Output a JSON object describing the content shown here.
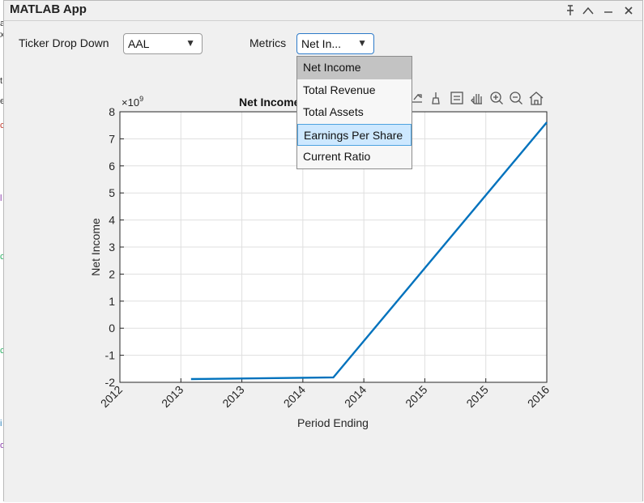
{
  "window": {
    "title": "MATLAB App"
  },
  "titlebar_icons": [
    "pin-icon",
    "undock-icon",
    "minimize-icon",
    "close-icon"
  ],
  "controls": {
    "ticker_label": "Ticker Drop Down",
    "ticker_value": "AAL",
    "metrics_label": "Metrics",
    "metrics_value": "Net In..."
  },
  "metrics_menu": {
    "items": [
      "Net Income",
      "Total Revenue",
      "Total Assets",
      "Earnings Per Share",
      "Current Ratio"
    ],
    "selected": "Net Income",
    "hovered": "Earnings Per Share"
  },
  "axes_toolbar_icons": [
    "export-icon",
    "brush-icon",
    "data-tips-icon",
    "pan-icon",
    "zoom-in-icon",
    "zoom-out-icon",
    "home-icon"
  ],
  "chart_data": {
    "type": "line",
    "title": "Net Income",
    "xlabel": "Period Ending",
    "ylabel": "Net Income",
    "exponent_label": "×10",
    "exponent_power": "9",
    "x_tick_labels": [
      "2012",
      "2013",
      "2013",
      "2014",
      "2014",
      "2015",
      "2015",
      "2016"
    ],
    "y_tick_labels": [
      "8",
      "7",
      "6",
      "5",
      "4",
      "3",
      "2",
      "1",
      "0",
      "-1",
      "-2"
    ],
    "ylim": [
      -2,
      8
    ],
    "xlim": [
      2012.5,
      2015.5
    ],
    "grid": true,
    "series": [
      {
        "x": [
          2013.0,
          2014.0,
          2015.5
        ],
        "y": [
          -1.88,
          -1.82,
          7.61
        ]
      }
    ],
    "colors": {
      "line": "#0072bd",
      "grid": "#dfdfdf",
      "axis": "#262626"
    }
  }
}
